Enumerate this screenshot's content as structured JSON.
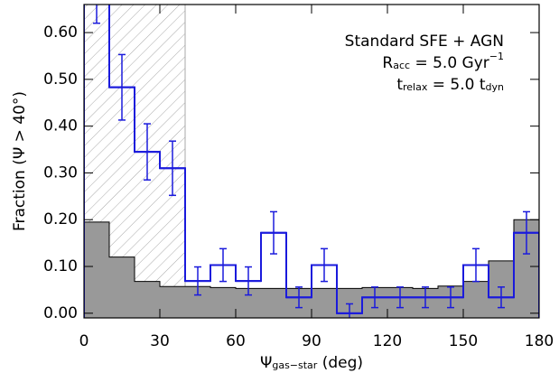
{
  "chart_data": {
    "type": "histogram",
    "bins": [
      0,
      10,
      20,
      30,
      40,
      50,
      60,
      70,
      80,
      90,
      100,
      110,
      120,
      130,
      140,
      150,
      160,
      170,
      180
    ],
    "series": [
      {
        "color": "#999999",
        "fill": true,
        "values": [
          0.195,
          0.12,
          0.068,
          0.057,
          0.057,
          0.055,
          0.053,
          0.053,
          0.053,
          0.053,
          0.053,
          0.055,
          0.055,
          0.053,
          0.058,
          0.068,
          0.112,
          0.2
        ]
      },
      {
        "color": "#1a1adc",
        "fill": false,
        "values": [
          0.7,
          0.483,
          0.345,
          0.31,
          0.069,
          0.103,
          0.069,
          0.172,
          0.034,
          0.103,
          0.0,
          0.034,
          0.034,
          0.034,
          0.034,
          0.103,
          0.034,
          0.172
        ],
        "errors": [
          0.08,
          0.07,
          0.06,
          0.058,
          0.03,
          0.035,
          0.03,
          0.045,
          0.022,
          0.035,
          0.02,
          0.022,
          0.022,
          0.022,
          0.022,
          0.035,
          0.022,
          0.045
        ]
      }
    ],
    "hatch_range": [
      0,
      40
    ],
    "xlim": [
      0,
      180
    ],
    "xticks": [
      0,
      30,
      60,
      90,
      120,
      150,
      180
    ],
    "ylim": [
      -0.01,
      0.66
    ],
    "yticks": [
      {
        "value": 0,
        "label": "0.00"
      },
      {
        "value": 0.1,
        "label": "0.10"
      },
      {
        "value": 0.2,
        "label": "0.20"
      },
      {
        "value": 0.3,
        "label": "0.30"
      },
      {
        "value": 0.4,
        "label": "0.40"
      },
      {
        "value": 0.5,
        "label": "0.50"
      },
      {
        "value": 0.6,
        "label": "0.60"
      }
    ],
    "xlabel": [
      {
        "text": "Ψ"
      },
      {
        "text": "gas−star",
        "sub": true
      },
      {
        "text": " (deg)"
      }
    ],
    "ylabel": "Fraction (Ψ > 40°)",
    "annotations": [
      [
        {
          "text": "Standard SFE + AGN"
        }
      ],
      [
        {
          "text": "R"
        },
        {
          "text": "acc",
          "sub": true
        },
        {
          "text": " = 5.0 Gyr"
        },
        {
          "text": "−1",
          "sup": true
        }
      ],
      [
        {
          "text": "t"
        },
        {
          "text": "relax",
          "sub": true
        },
        {
          "text": " = 5.0 t"
        },
        {
          "text": "dyn",
          "sub": true
        }
      ]
    ]
  }
}
